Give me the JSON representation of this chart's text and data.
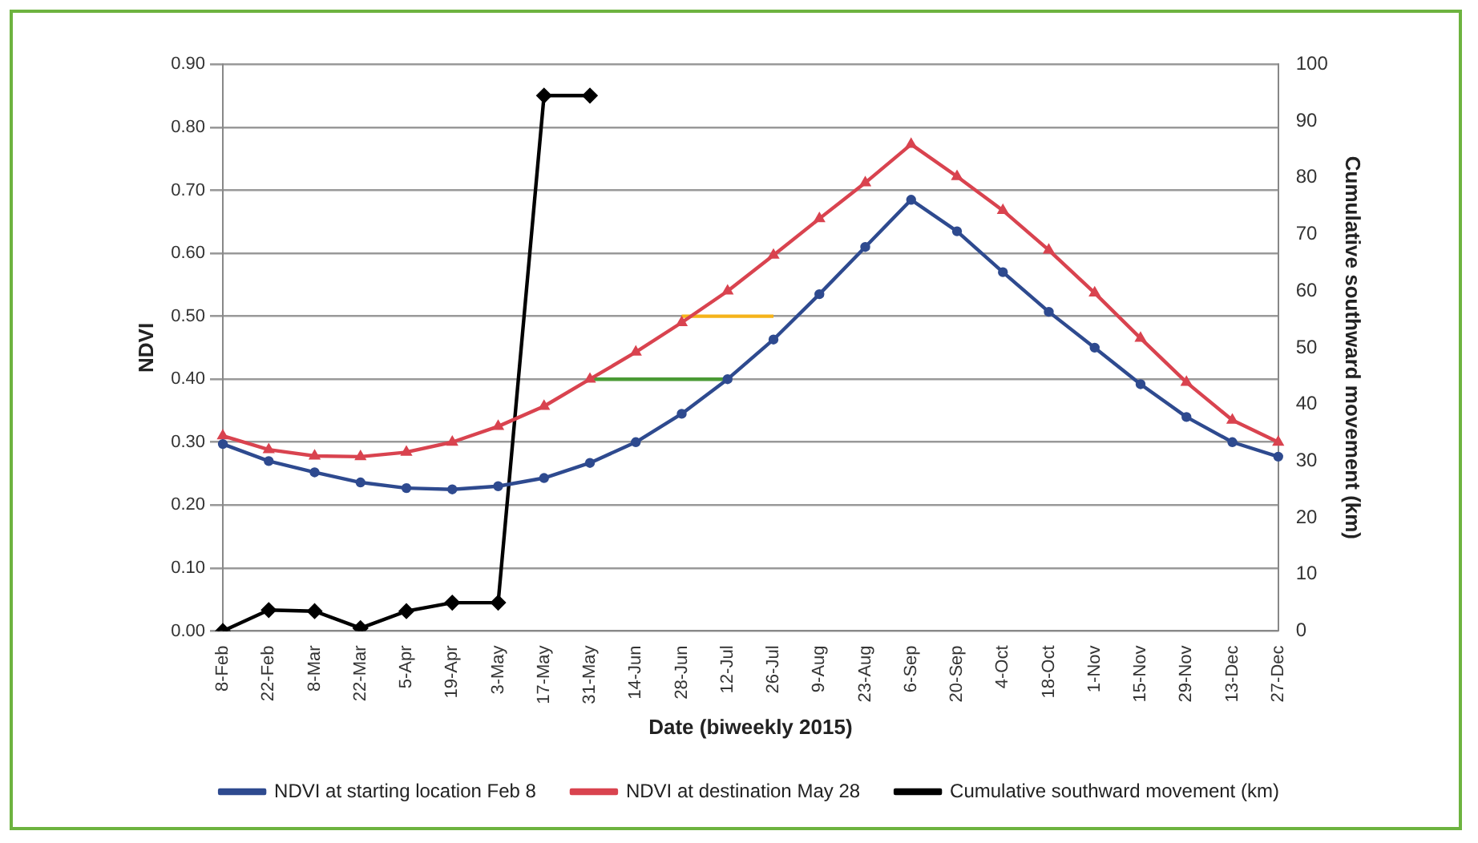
{
  "chart_data": {
    "type": "line",
    "xlabel": "Date (biweekly 2015)",
    "ylabel": "NDVI",
    "y2label": "Cumulative southward movement (km)",
    "categories": [
      "8-Feb",
      "22-Feb",
      "8-Mar",
      "22-Mar",
      "5-Apr",
      "19-Apr",
      "3-May",
      "17-May",
      "31-May",
      "14-Jun",
      "28-Jun",
      "12-Jul",
      "26-Jul",
      "9-Aug",
      "23-Aug",
      "6-Sep",
      "20-Sep",
      "4-Oct",
      "18-Oct",
      "1-Nov",
      "15-Nov",
      "29-Nov",
      "13-Dec",
      "27-Dec"
    ],
    "series": [
      {
        "name": "NDVI at starting location Feb 8",
        "color": "#2e4a8f",
        "marker": "circle",
        "values": [
          0.297,
          0.27,
          0.252,
          0.236,
          0.227,
          0.225,
          0.23,
          0.243,
          0.267,
          0.3,
          0.345,
          0.4,
          0.463,
          0.535,
          0.61,
          0.685,
          0.635,
          0.57,
          0.507,
          0.45,
          0.392,
          0.34,
          0.3,
          0.277
        ]
      },
      {
        "name": "NDVI at destination May 28",
        "color": "#d9434f",
        "marker": "triangle",
        "values": [
          0.31,
          0.288,
          0.278,
          0.277,
          0.284,
          0.3,
          0.325,
          0.357,
          0.4,
          0.443,
          0.49,
          0.54,
          0.597,
          0.655,
          0.712,
          0.773,
          0.722,
          0.668,
          0.605,
          0.537,
          0.465,
          0.395,
          0.335,
          0.3
        ]
      },
      {
        "name": "Cumulative southward movement (km)",
        "color": "#000000",
        "marker": "diamond",
        "axis": "y2",
        "values": [
          0,
          3.7,
          3.5,
          0.5,
          3.5,
          5,
          5,
          94.5,
          94.5,
          null,
          null,
          null,
          null,
          null,
          null,
          null,
          null,
          null,
          null,
          null,
          null,
          null,
          null,
          null
        ]
      },
      {
        "color": "#4a9a35",
        "marker": "none",
        "values": [
          null,
          null,
          null,
          null,
          null,
          null,
          null,
          null,
          0.4,
          0.4,
          0.4,
          0.4,
          null,
          null,
          null,
          null,
          null,
          null,
          null,
          null,
          null,
          null,
          null,
          null
        ]
      },
      {
        "color": "#f5b319",
        "marker": "none",
        "values": [
          null,
          null,
          null,
          null,
          null,
          null,
          null,
          null,
          null,
          null,
          0.5,
          0.5,
          0.5,
          null,
          null,
          null,
          null,
          null,
          null,
          null,
          null,
          null,
          null,
          null
        ]
      }
    ],
    "ylim": [
      0,
      0.9
    ],
    "yticks": [
      {
        "value": 0,
        "label": "0.00"
      },
      {
        "value": 0.1,
        "label": "0.10"
      },
      {
        "value": 0.2,
        "label": "0.20"
      },
      {
        "value": 0.3,
        "label": "0.30"
      },
      {
        "value": 0.4,
        "label": "0.40"
      },
      {
        "value": 0.5,
        "label": "0.50"
      },
      {
        "value": 0.6,
        "label": "0.60"
      },
      {
        "value": 0.7,
        "label": "0.70"
      },
      {
        "value": 0.8,
        "label": "0.80"
      },
      {
        "value": 0.9,
        "label": "0.90"
      }
    ],
    "y2lim": [
      0,
      100
    ],
    "y2ticks": [
      0,
      10,
      20,
      30,
      40,
      50,
      60,
      70,
      80,
      90,
      100
    ],
    "grid": "y",
    "legend": "bottom"
  }
}
